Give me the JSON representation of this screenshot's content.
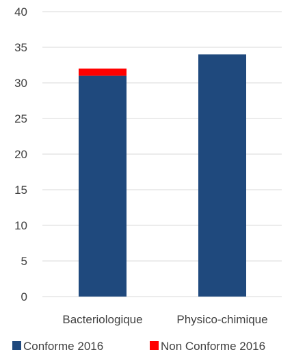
{
  "chart_data": {
    "type": "bar",
    "stacked": true,
    "categories": [
      "Bacteriologique",
      "Physico-chimique"
    ],
    "series": [
      {
        "name": "Conforme 2016",
        "values": [
          31,
          34
        ],
        "color": "#1F497D"
      },
      {
        "name": "Non Conforme 2016",
        "values": [
          1,
          0
        ],
        "color": "#FF0000"
      }
    ],
    "ylim": [
      0,
      40
    ],
    "yticks": [
      "0",
      "5",
      "10",
      "15",
      "20",
      "25",
      "30",
      "35",
      "40"
    ],
    "grid": true,
    "legend": "bottom",
    "title": "",
    "xlabel": "",
    "ylabel": ""
  }
}
